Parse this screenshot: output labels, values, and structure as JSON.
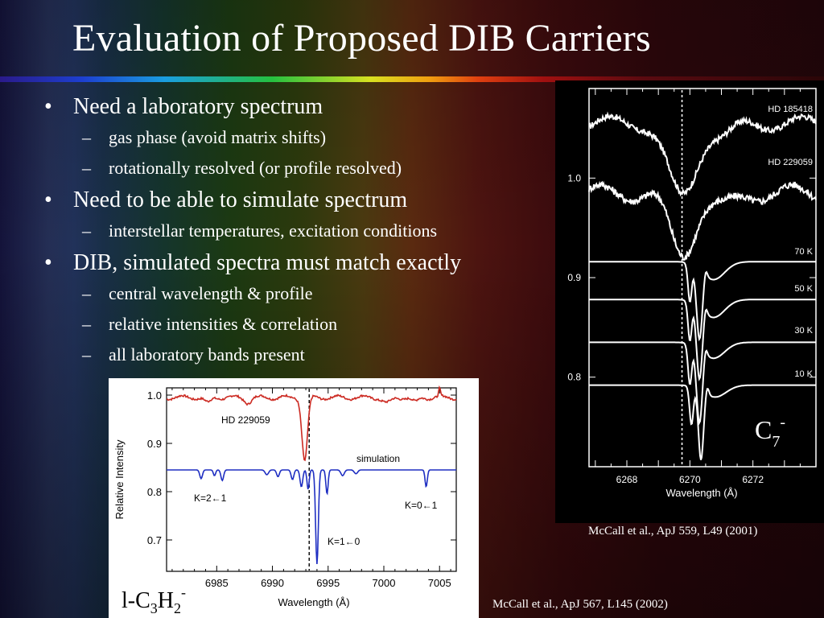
{
  "slide": {
    "title": "Evaluation of Proposed DIB Carriers",
    "bullets": [
      {
        "text": "Need a laboratory spectrum",
        "subs": [
          "gas phase (avoid matrix shifts)",
          "rotationally resolved (or profile resolved)"
        ]
      },
      {
        "text": "Need to be able to simulate spectrum",
        "subs": [
          "interstellar temperatures, excitation conditions"
        ]
      },
      {
        "text": "DIB, simulated spectra must match exactly",
        "subs": [
          "central wavelength & profile",
          "relative intensities & correlation",
          "all laboratory bands present"
        ]
      }
    ],
    "bullet_symbol": "•",
    "sub_symbol": "–",
    "citation_right": "McCall et al., ApJ 559, L49 (2001)",
    "citation_bottom": "McCall et al., ApJ 567, L145 (2002)"
  },
  "chart_data": [
    {
      "type": "line",
      "xlabel": "Wavelength (Å)",
      "x_ticks": [
        "6268",
        "6270",
        "6272"
      ],
      "y_ticks": [
        "1.0",
        "0.9",
        "0.8"
      ],
      "xlim": [
        6266.8,
        6274.0
      ],
      "ylim": [
        0.71,
        1.09
      ],
      "marker_line_x": 6269.75,
      "molecule_label": {
        "base": "C",
        "sub": "7",
        "sup": "-"
      },
      "series": [
        {
          "name": "HD 185418",
          "baseline": 1.055,
          "center": 6269.75,
          "depth": 0.075,
          "width": 0.45,
          "noise": 0.006,
          "ripple": 0.012
        },
        {
          "name": "HD 229059",
          "baseline": 0.985,
          "center": 6269.75,
          "depth": 0.062,
          "width": 0.4,
          "noise": 0.007,
          "ripple": 0.014
        },
        {
          "name": "70 K",
          "baseline": 0.916,
          "center": 6270.3,
          "depth": 0.07,
          "width": 0.09,
          "shoulder": 0.018
        },
        {
          "name": "50 K",
          "baseline": 0.878,
          "center": 6270.3,
          "depth": 0.072,
          "width": 0.09,
          "shoulder": 0.018
        },
        {
          "name": "30 K",
          "baseline": 0.835,
          "center": 6270.3,
          "depth": 0.074,
          "width": 0.09,
          "shoulder": 0.016
        },
        {
          "name": "10 K",
          "baseline": 0.792,
          "center": 6270.35,
          "depth": 0.07,
          "width": 0.08,
          "shoulder": 0.012
        }
      ]
    },
    {
      "type": "line",
      "xlabel": "Wavelength (Å)",
      "ylabel": "Relative Intensity",
      "x_ticks": [
        "6985",
        "6990",
        "6995",
        "7000",
        "7005"
      ],
      "y_ticks": [
        "1.0",
        "0.9",
        "0.8",
        "0.7"
      ],
      "xlim": [
        6980.5,
        7006.5
      ],
      "ylim": [
        0.635,
        1.015
      ],
      "marker_line_x": 6993.3,
      "molecule_label": "l-C3H2-",
      "series": [
        {
          "name": "HD 229059",
          "color": "#cc2a22",
          "baseline": 0.995,
          "center": 6992.9,
          "depth": 0.13,
          "width": 0.25
        },
        {
          "name": "simulation",
          "color": "#1f2fc2",
          "baseline": 0.845,
          "center": 6994.0,
          "depth": 0.195,
          "width": 0.12
        }
      ],
      "annotations": [
        {
          "text": "K=2←1",
          "x": 6985.2,
          "y": 0.785
        },
        {
          "text": "K=1←0",
          "x": 6996.8,
          "y": 0.66
        },
        {
          "text": "K=0←1",
          "x": 7004.6,
          "y": 0.775
        }
      ]
    }
  ]
}
